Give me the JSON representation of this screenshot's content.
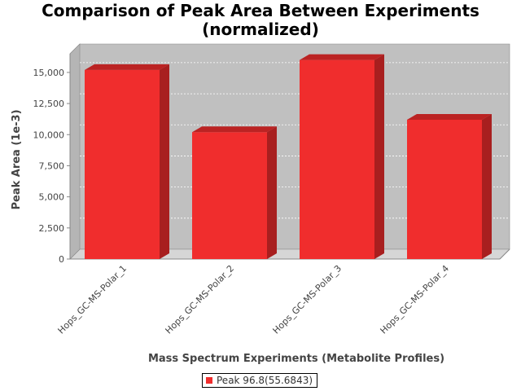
{
  "chart_data": {
    "type": "bar",
    "title_lines": [
      "Comparison of Peak Area Between Experiments",
      "(normalized)"
    ],
    "xlabel": "Mass Spectrum Experiments (Metabolite Profiles)",
    "ylabel": "Peak Area (1e-3)",
    "categories": [
      "Hops_GC-MS-Polar_1",
      "Hops_GC-MS-Polar_2",
      "Hops_GC-MS-Polar_3",
      "Hops_GC-MS-Polar_4"
    ],
    "series": [
      {
        "name": "Peak 96.8(55.6843)",
        "color": "#f02d2d",
        "values": [
          15200,
          10200,
          16000,
          11200
        ]
      }
    ],
    "ylim": [
      0,
      16500
    ],
    "yticks": [
      0,
      2500,
      5000,
      7500,
      10000,
      12500,
      15000
    ],
    "ytick_labels": [
      "0",
      "2,500",
      "5,000",
      "7,500",
      "10,000",
      "12,500",
      "15,000"
    ],
    "grid": true,
    "legend_position": "bottom-center",
    "style": "3d"
  }
}
